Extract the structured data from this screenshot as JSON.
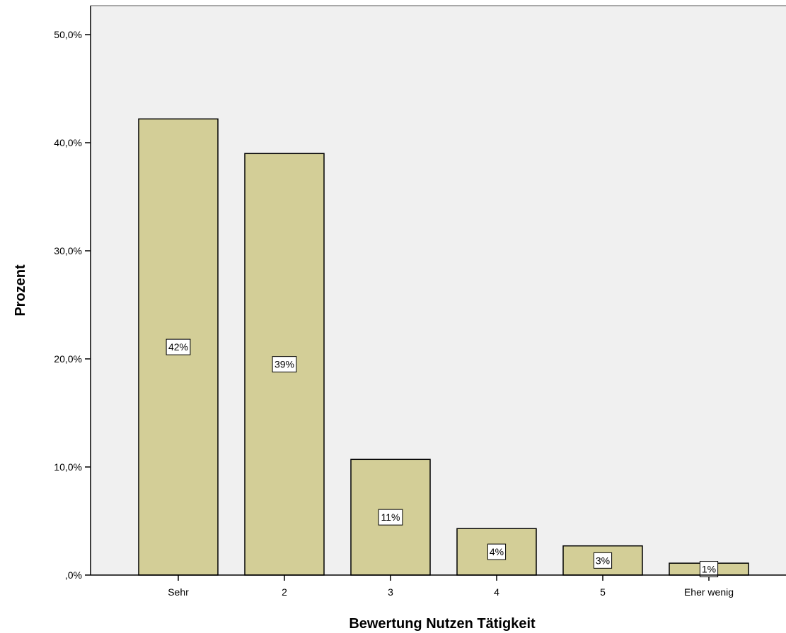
{
  "chart_data": {
    "type": "bar",
    "categories": [
      "Sehr",
      "2",
      "3",
      "4",
      "5",
      "Eher wenig"
    ],
    "values": [
      42.2,
      39.0,
      10.7,
      4.3,
      2.7,
      1.1
    ],
    "data_labels": [
      "42%",
      "39%",
      "11%",
      "4%",
      "3%",
      "1%"
    ],
    "xlabel": "Bewertung Nutzen Tätigkeit",
    "ylabel": "Prozent",
    "ylim": [
      0,
      52
    ],
    "yticks": [
      0,
      10,
      20,
      30,
      40,
      50
    ],
    "ytick_labels": [
      ",0%",
      "10,0%",
      "20,0%",
      "30,0%",
      "40,0%",
      "50,0%"
    ],
    "colors": {
      "plot_background": "#f0f0f0",
      "bar_fill": "#d3ce97",
      "bar_stroke": "#000000",
      "label_box": "#ffffff"
    }
  }
}
